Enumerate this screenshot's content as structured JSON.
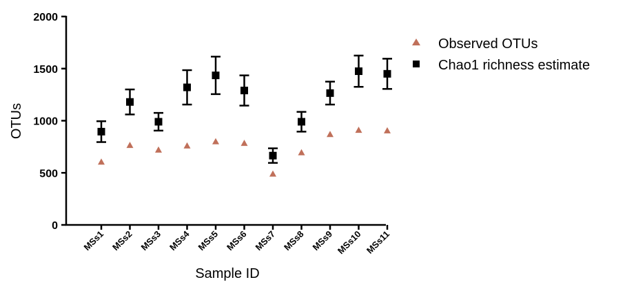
{
  "chart_data": {
    "type": "scatter",
    "title": "",
    "xlabel": "Sample ID",
    "ylabel": "OTUs",
    "ylim": [
      0,
      2000
    ],
    "yticks": [
      "0",
      "500",
      "1000",
      "1500",
      "2000"
    ],
    "categories": [
      "MSs1",
      "MSs2",
      "MSs3",
      "MSs4",
      "MSs5",
      "MSs6",
      "MSs7",
      "MSs8",
      "MSs9",
      "MSs10",
      "MSs11"
    ],
    "legend_position": "top-right",
    "series": [
      {
        "name": "Observed OTUs",
        "marker": "triangle",
        "color": "#c0705a",
        "values": [
          605,
          765,
          720,
          760,
          800,
          785,
          490,
          695,
          870,
          910,
          905
        ]
      },
      {
        "name": "Chao1 richness estimate",
        "marker": "square",
        "color": "#000000",
        "values": [
          895,
          1180,
          990,
          1320,
          1435,
          1290,
          665,
          990,
          1265,
          1475,
          1450
        ],
        "error": [
          100,
          120,
          85,
          165,
          180,
          145,
          70,
          95,
          110,
          150,
          145
        ]
      }
    ]
  }
}
